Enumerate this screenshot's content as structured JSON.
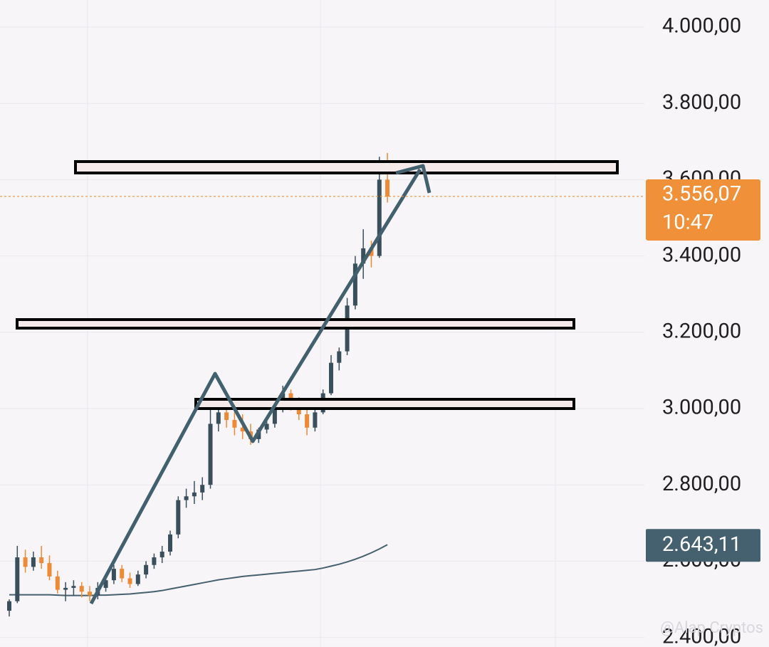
{
  "chart_data": {
    "type": "candlestick",
    "open": [
      2470,
      2495,
      2610,
      2585,
      2610,
      2595,
      2560,
      2525,
      2530,
      2535,
      2520,
      2510,
      2530,
      2550,
      2580,
      2555,
      2540,
      2565,
      2590,
      2610,
      2625,
      2670,
      2760,
      2770,
      2780,
      2800,
      2960,
      2990,
      2970,
      2950,
      2940,
      2920,
      2945,
      2960,
      3000,
      3040,
      3010,
      2985,
      2950,
      2990,
      3040,
      3120,
      3150,
      3270,
      3380,
      3420,
      3400,
      3600
    ],
    "high": [
      2500,
      2640,
      2630,
      2625,
      2640,
      2615,
      2575,
      2545,
      2550,
      2545,
      2535,
      2545,
      2560,
      2590,
      2590,
      2570,
      2575,
      2600,
      2620,
      2640,
      2680,
      2770,
      2790,
      2810,
      2820,
      3010,
      3010,
      3010,
      3000,
      2985,
      2960,
      2950,
      2975,
      3010,
      3060,
      3050,
      3030,
      3000,
      3000,
      3050,
      3140,
      3160,
      3290,
      3400,
      3470,
      3440,
      3660,
      3670
    ],
    "low": [
      2455,
      2490,
      2570,
      2575,
      2580,
      2550,
      2515,
      2495,
      2510,
      2505,
      2495,
      2500,
      2520,
      2540,
      2545,
      2530,
      2535,
      2555,
      2580,
      2595,
      2615,
      2660,
      2740,
      2750,
      2760,
      2790,
      2940,
      2950,
      2930,
      2920,
      2905,
      2910,
      2935,
      2950,
      2990,
      2995,
      2970,
      2930,
      2940,
      2985,
      3035,
      3100,
      3140,
      3260,
      3340,
      3370,
      3395,
      3540
    ],
    "close": [
      2495,
      2610,
      2585,
      2610,
      2595,
      2560,
      2525,
      2530,
      2535,
      2520,
      2510,
      2530,
      2550,
      2580,
      2555,
      2540,
      2565,
      2590,
      2610,
      2625,
      2670,
      2760,
      2770,
      2780,
      2800,
      2960,
      2990,
      2970,
      2950,
      2940,
      2920,
      2945,
      2960,
      3000,
      3040,
      3010,
      2985,
      2950,
      2990,
      3040,
      3120,
      3150,
      3270,
      3380,
      3420,
      3400,
      3600,
      3556.07
    ],
    "up_color": "#3a4f5c",
    "down_color": "#ec8a35",
    "series": [
      {
        "values": [
          2512,
          2512,
          2512,
          2512,
          2512,
          2512,
          2511,
          2510,
          2510,
          2510,
          2510,
          2511,
          2511,
          2512,
          2513,
          2514,
          2516,
          2518,
          2520,
          2523,
          2527,
          2531,
          2535,
          2539,
          2543,
          2547,
          2551,
          2554,
          2557,
          2560,
          2562,
          2564,
          2566,
          2568,
          2570,
          2572,
          2574,
          2576,
          2578,
          2582,
          2587,
          2592,
          2598,
          2605,
          2613,
          2622,
          2632,
          2643.11
        ],
        "color": "#45606e"
      }
    ],
    "ylim": [
      2380,
      4050
    ],
    "yticks": [
      {
        "value": 4000,
        "label": "4.000,00"
      },
      {
        "value": 3800,
        "label": "3.800,00"
      },
      {
        "value": 3600,
        "label": "3.600,00"
      },
      {
        "value": 3400,
        "label": "3.400,00"
      },
      {
        "value": 3200,
        "label": "3.200,00"
      },
      {
        "value": 3000,
        "label": "3.000,00"
      },
      {
        "value": 2800,
        "label": "2.800,00"
      },
      {
        "value": 2600,
        "label": "2.600,00"
      },
      {
        "value": 2400,
        "label": "2.400,00"
      }
    ],
    "grid": true,
    "price_tag": {
      "value": 3556.07,
      "label": "3.556,07",
      "time": "10:47",
      "color": "#f0913a"
    },
    "ma_tag": {
      "value": 2643.11,
      "label": "2.643,11",
      "color": "#45606e"
    },
    "watermark": "@Alap Cryptos"
  }
}
